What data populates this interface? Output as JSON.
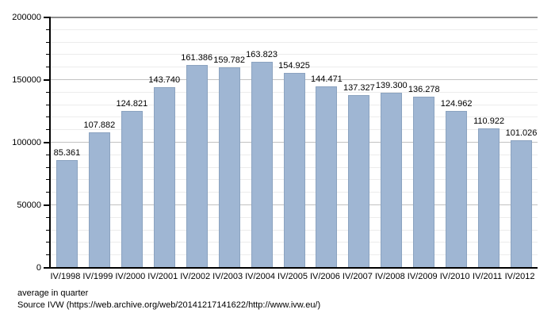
{
  "chart_data": {
    "type": "bar",
    "title": "",
    "xlabel": "",
    "ylabel": "",
    "categories": [
      "IV/1998",
      "IV/1999",
      "IV/2000",
      "IV/2001",
      "IV/2002",
      "IV/2003",
      "IV/2004",
      "IV/2005",
      "IV/2006",
      "IV/2007",
      "IV/2008",
      "IV/2009",
      "IV/2010",
      "IV/2011",
      "IV/2012"
    ],
    "values": [
      85361,
      107882,
      124821,
      143740,
      161386,
      159782,
      163823,
      154925,
      144471,
      137327,
      139300,
      136278,
      124962,
      110922,
      101026
    ],
    "value_labels": [
      "85.361",
      "107.882",
      "124.821",
      "143.740",
      "161.386",
      "159.782",
      "163.823",
      "154.925",
      "144.471",
      "137.327",
      "139.300",
      "136.278",
      "124.962",
      "110.922",
      "101.026"
    ],
    "ylim": [
      0,
      200000
    ],
    "y_major_step": 50000,
    "y_minor_step": 10000,
    "y_tick_labels": [
      "0",
      "50000",
      "100000",
      "150000",
      "200000"
    ],
    "grid": true,
    "legend": "none",
    "bar_color": "#9fb6d3",
    "bar_border_color": "#8ba3c0",
    "major_grid_color": "#c2c2c2",
    "minor_grid_color": "#ececec",
    "top_grid_color": "#8c8c8c",
    "axis_color": "#000000"
  },
  "footer": {
    "note": "average in quarter",
    "source": "Source IVW (https://web.archive.org/web/20141217141622/http://www.ivw.eu/)"
  }
}
